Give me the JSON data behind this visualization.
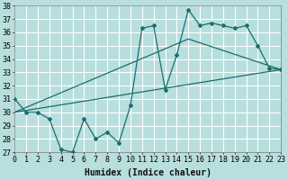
{
  "xlabel": "Humidex (Indice chaleur)",
  "ylabel": "",
  "bg_color": "#b8dede",
  "grid_color": "#ffffff",
  "line_color": "#1a6e6e",
  "x_min": 0,
  "x_max": 23,
  "y_min": 27,
  "y_max": 38,
  "main_x": [
    0,
    1,
    2,
    3,
    4,
    5,
    6,
    7,
    8,
    9,
    10,
    11,
    12,
    13,
    14,
    15,
    16,
    17,
    18,
    19,
    20,
    21,
    22,
    23
  ],
  "main_y": [
    31,
    30,
    30,
    29.5,
    27.2,
    27.0,
    29.5,
    28.0,
    28.5,
    27.7,
    30.5,
    36.3,
    36.5,
    31.7,
    34.3,
    37.7,
    36.5,
    36.7,
    36.5,
    36.3,
    36.5,
    35.0,
    33.3,
    33.2
  ],
  "line2_x": [
    0,
    23
  ],
  "line2_y": [
    30.0,
    33.2
  ],
  "line3_x": [
    0,
    15,
    23
  ],
  "line3_y": [
    30.0,
    35.5,
    33.2
  ],
  "tick_fontsize": 6,
  "label_fontsize": 7
}
